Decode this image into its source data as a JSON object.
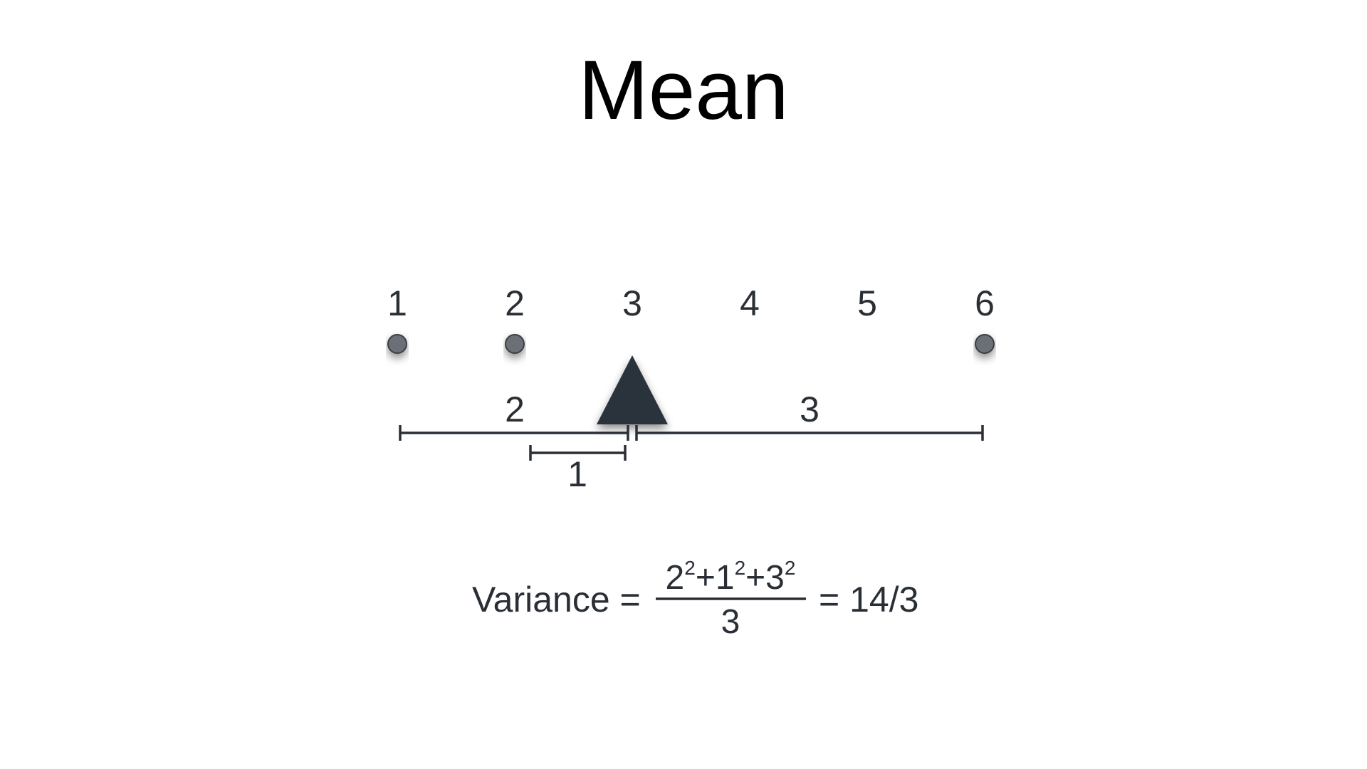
{
  "title": "Mean",
  "number_line": {
    "ticks": [
      "1",
      "2",
      "3",
      "4",
      "5",
      "6"
    ],
    "points": [
      1,
      2,
      6
    ],
    "fulcrum_at": 3
  },
  "deviations": {
    "left_long_label": "2",
    "left_short_label": "1",
    "right_label": "3"
  },
  "formula": {
    "lhs": "Variance =",
    "numerator": [
      {
        "base": "2",
        "exp": "2"
      },
      {
        "op": "+"
      },
      {
        "base": "1",
        "exp": "2"
      },
      {
        "op": "+"
      },
      {
        "base": "3",
        "exp": "2"
      }
    ],
    "denominator": "3",
    "result": "= 14/3"
  },
  "colors": {
    "ink": "#2a2f36",
    "point_fill": "#6b6f74",
    "fulcrum": "#2b323a",
    "title": "#000000"
  }
}
